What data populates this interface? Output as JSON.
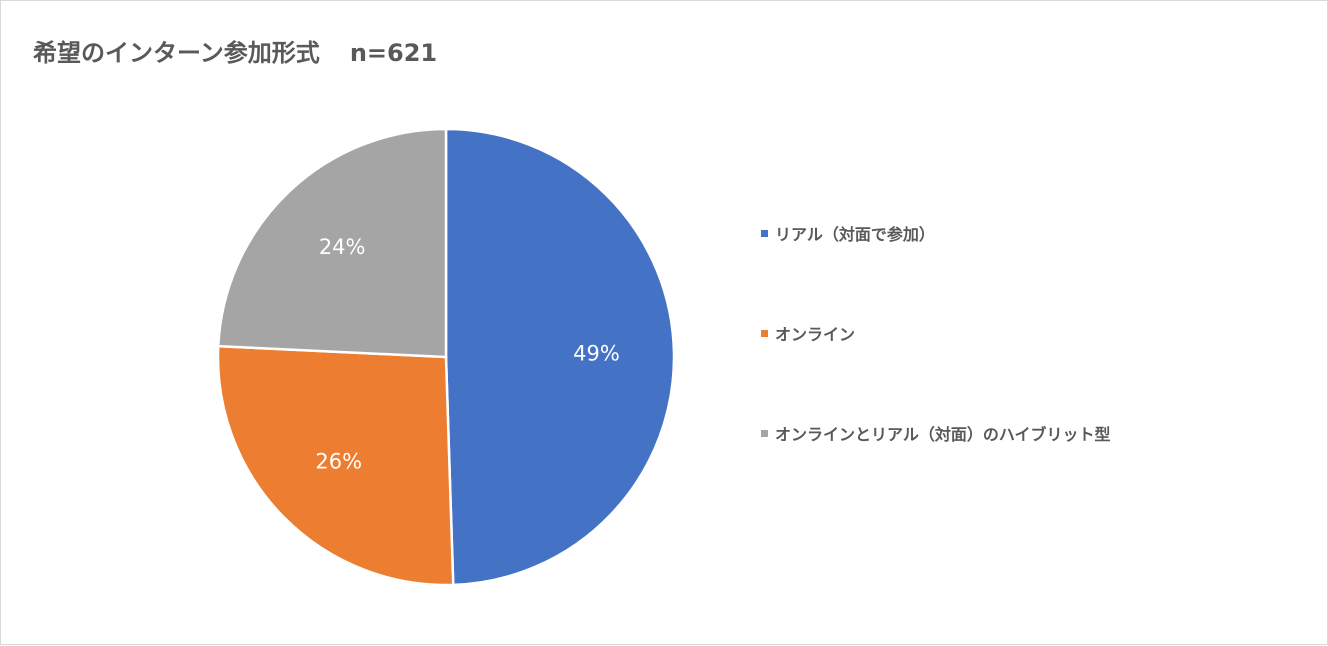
{
  "chart_data": {
    "type": "pie",
    "title": "希望のインターン参加形式",
    "subtitle": "n=621",
    "categories": [
      "リアル（対面で参加）",
      "オンライン",
      "オンラインとリアル（対面）のハイブリット型"
    ],
    "values": [
      49,
      26,
      24
    ],
    "labels": [
      "49%",
      "26%",
      "24%"
    ],
    "colors": [
      "#4472c4",
      "#ed7d31",
      "#a5a5a5"
    ],
    "legend_position": "right"
  }
}
